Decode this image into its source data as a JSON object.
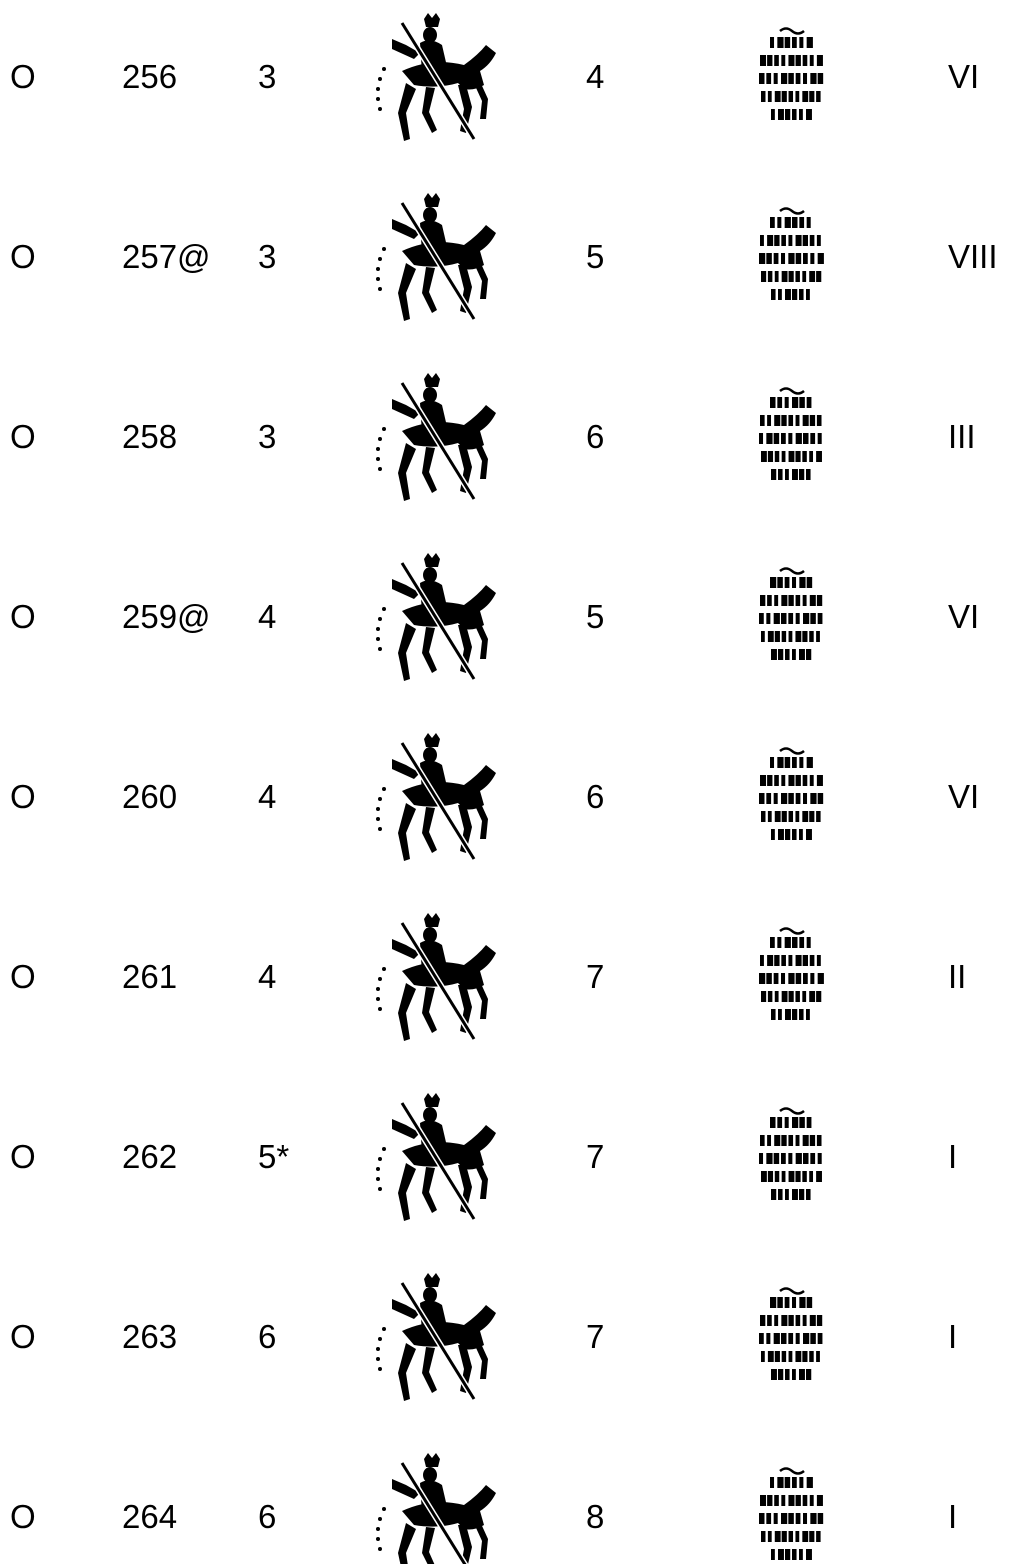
{
  "table": {
    "rows": [
      [
        "O",
        "256",
        "3",
        "4",
        "VI"
      ],
      [
        "O",
        "257@",
        "3",
        "5",
        "VIII"
      ],
      [
        "O",
        "258",
        "3",
        "6",
        "III"
      ],
      [
        "O",
        "259@",
        "4",
        "5",
        "VI"
      ],
      [
        "O",
        "260",
        "4",
        "6",
        "VI"
      ],
      [
        "O",
        "261",
        "4",
        "7",
        "II"
      ],
      [
        "O",
        "262",
        "5*",
        "7",
        "I"
      ],
      [
        "O",
        "263",
        "6",
        "7",
        "I"
      ],
      [
        "O",
        "264",
        "6",
        "8",
        "I"
      ]
    ]
  }
}
